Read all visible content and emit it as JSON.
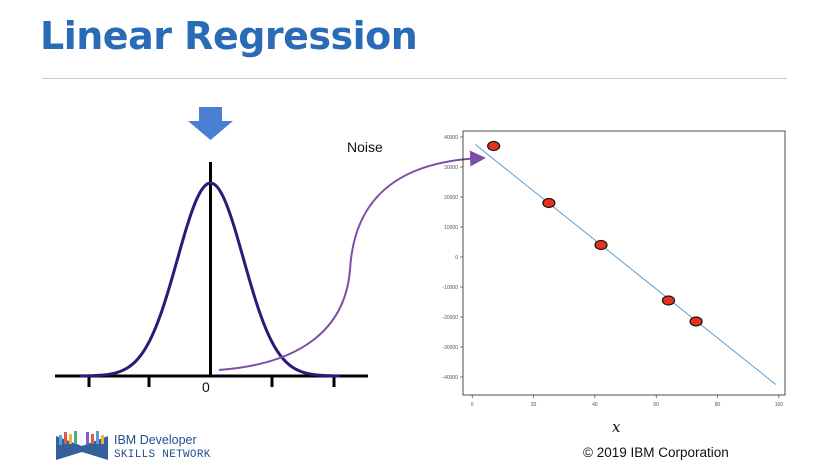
{
  "slide": {
    "title": "Linear Regression",
    "noise_label": "Noise",
    "zero_label": "0",
    "x_label": "x",
    "copyright": "© 2019 IBM Corporation",
    "logo_line1": "IBM Developer",
    "logo_line2": "SKILLS NETWORK"
  },
  "colors": {
    "title": "#2a6bb7",
    "curve": "#2b1a7a",
    "arrow": "#7b4fa8",
    "down_arrow": "#4a7fd4",
    "line": "#5aa0d0",
    "point_fill": "#e8301e"
  },
  "chart_data": {
    "type": "scatter",
    "xlim": [
      -3,
      102
    ],
    "ylim": [
      -46000,
      42000
    ],
    "x_ticks": [
      0,
      20,
      40,
      60,
      80,
      100
    ],
    "x_tick_labels": [
      "0",
      "20",
      "40",
      "60",
      "80",
      "100"
    ],
    "y_ticks": [
      40000,
      30000,
      20000,
      10000,
      0,
      -10000,
      -20000,
      -30000,
      -40000
    ],
    "y_tick_labels": [
      "40000",
      "30000",
      "20000",
      "10000",
      "0",
      "-10000",
      "-20000",
      "-30000",
      "-40000"
    ],
    "xlabel": "x",
    "points": [
      {
        "x": 7,
        "y": 37000
      },
      {
        "x": 25,
        "y": 18000
      },
      {
        "x": 42,
        "y": 4000
      },
      {
        "x": 64,
        "y": -14500
      },
      {
        "x": 73,
        "y": -21500
      }
    ],
    "line": {
      "x": [
        1,
        99
      ],
      "y": [
        37500,
        -42500
      ]
    }
  }
}
